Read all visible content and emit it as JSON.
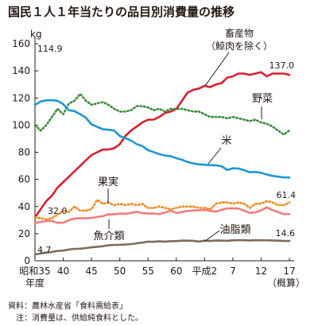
{
  "chart_data": {
    "type": "line",
    "title": "国民１人１年当たりの品目別消費量の推移",
    "ylabel": "kg",
    "ylim": [
      0,
      160
    ],
    "yticks": [
      "0",
      "20",
      "40",
      "60",
      "80",
      "100",
      "120",
      "140",
      "160"
    ],
    "xlim": [
      1960,
      2005
    ],
    "xticks": [
      {
        "x": 1960,
        "label": "昭和35"
      },
      {
        "x": 1965,
        "label": "40"
      },
      {
        "x": 1970,
        "label": "45"
      },
      {
        "x": 1975,
        "label": "50"
      },
      {
        "x": 1980,
        "label": "55"
      },
      {
        "x": 1985,
        "label": "60"
      },
      {
        "x": 1990,
        "label": "平成2"
      },
      {
        "x": 1995,
        "label": "7"
      },
      {
        "x": 2000,
        "label": "12"
      },
      {
        "x": 2005,
        "label": "17"
      }
    ],
    "xlabel_under_first": "年度",
    "xlabel_under_last": "（概算）",
    "grid": false,
    "series": [
      {
        "name": "畜産物（鯨肉を除く）",
        "color": "#d7202f",
        "style": "solid",
        "x": [
          1960,
          1961,
          1962,
          1963,
          1964,
          1965,
          1966,
          1967,
          1968,
          1969,
          1970,
          1971,
          1972,
          1973,
          1974,
          1975,
          1976,
          1977,
          1978,
          1979,
          1980,
          1981,
          1982,
          1983,
          1984,
          1985,
          1986,
          1987,
          1988,
          1989,
          1990,
          1991,
          1992,
          1993,
          1994,
          1995,
          1996,
          1997,
          1998,
          1999,
          2000,
          2001,
          2002,
          2003,
          2004,
          2005
        ],
        "y": [
          32,
          38,
          44,
          48,
          54,
          58,
          62,
          66,
          70,
          74,
          78,
          80,
          82,
          82,
          83,
          86,
          92,
          96,
          99,
          102,
          104,
          104,
          106,
          109,
          110,
          112,
          118,
          124,
          126,
          127,
          129,
          128,
          130,
          131,
          135,
          136,
          138,
          138,
          137,
          138,
          139,
          136,
          138,
          138,
          138,
          137
        ],
        "start_label": "",
        "end_label": "137.0"
      },
      {
        "name": "野菜",
        "color": "#3d8b3d",
        "style": "dotted",
        "x": [
          1960,
          1961,
          1962,
          1963,
          1964,
          1965,
          1966,
          1967,
          1968,
          1969,
          1970,
          1971,
          1972,
          1973,
          1974,
          1975,
          1976,
          1977,
          1978,
          1979,
          1980,
          1981,
          1982,
          1983,
          1984,
          1985,
          1986,
          1987,
          1988,
          1989,
          1990,
          1991,
          1992,
          1993,
          1994,
          1995,
          1996,
          1997,
          1998,
          1999,
          2000,
          2001,
          2002,
          2003,
          2004,
          2005
        ],
        "y": [
          100,
          96,
          100,
          106,
          112,
          108,
          116,
          118,
          123,
          118,
          115,
          116,
          117,
          115,
          112,
          110,
          110,
          111,
          114,
          114,
          113,
          111,
          112,
          110,
          112,
          112,
          112,
          111,
          110,
          110,
          108,
          106,
          106,
          106,
          105,
          106,
          105,
          104,
          103,
          104,
          102,
          101,
          99,
          96,
          93,
          96
        ],
        "start_label": "",
        "end_label": ""
      },
      {
        "name": "米",
        "color": "#1e96d4",
        "style": "solid",
        "x": [
          1960,
          1961,
          1962,
          1963,
          1964,
          1965,
          1966,
          1967,
          1968,
          1969,
          1970,
          1971,
          1972,
          1973,
          1974,
          1975,
          1976,
          1977,
          1978,
          1979,
          1980,
          1981,
          1982,
          1983,
          1984,
          1985,
          1986,
          1987,
          1988,
          1989,
          1990,
          1991,
          1992,
          1993,
          1994,
          1995,
          1996,
          1997,
          1998,
          1999,
          2000,
          2001,
          2002,
          2003,
          2004,
          2005
        ],
        "y": [
          114.9,
          117.4,
          118.3,
          118.4,
          117.9,
          115.4,
          111.0,
          110.3,
          108.1,
          105.5,
          100.5,
          98.8,
          97.0,
          96.6,
          96.0,
          92.0,
          90.4,
          88.6,
          86.0,
          84.6,
          81.5,
          80.1,
          78.6,
          77.6,
          77.1,
          75.6,
          74.5,
          72.8,
          71.8,
          71.1,
          70.8,
          70.5,
          70.4,
          69.7,
          67.0,
          68.2,
          68.0,
          66.8,
          65.3,
          65.5,
          64.9,
          63.6,
          62.6,
          62.0,
          61.5,
          61.4
        ],
        "start_label": "114.9",
        "end_label": "61.4"
      },
      {
        "name": "果実",
        "color": "#ee8a1c",
        "style": "dotted",
        "x": [
          1960,
          1961,
          1962,
          1963,
          1964,
          1965,
          1966,
          1967,
          1968,
          1969,
          1970,
          1971,
          1972,
          1973,
          1974,
          1975,
          1976,
          1977,
          1978,
          1979,
          1980,
          1981,
          1982,
          1983,
          1984,
          1985,
          1986,
          1987,
          1988,
          1989,
          1990,
          1991,
          1992,
          1993,
          1994,
          1995,
          1996,
          1997,
          1998,
          1999,
          2000,
          2001,
          2002,
          2003,
          2004,
          2005
        ],
        "y": [
          32.0,
          31.5,
          30.5,
          31.5,
          34,
          37,
          36,
          40,
          37,
          37,
          38,
          45,
          42,
          43,
          41,
          42,
          41,
          42,
          41,
          42,
          39,
          39,
          40,
          39,
          38,
          39,
          40,
          40,
          40,
          39,
          39,
          38,
          42,
          43,
          43,
          42,
          43,
          42,
          39,
          42,
          42,
          44,
          43,
          41,
          41,
          43
        ],
        "start_label": "32.0",
        "end_label": ""
      },
      {
        "name": "魚介類",
        "color": "#ef7d7d",
        "style": "solid",
        "x": [
          1960,
          1961,
          1962,
          1963,
          1964,
          1965,
          1966,
          1967,
          1968,
          1969,
          1970,
          1971,
          1972,
          1973,
          1974,
          1975,
          1976,
          1977,
          1978,
          1979,
          1980,
          1981,
          1982,
          1983,
          1984,
          1985,
          1986,
          1987,
          1988,
          1989,
          1990,
          1991,
          1992,
          1993,
          1994,
          1995,
          1996,
          1997,
          1998,
          1999,
          2000,
          2001,
          2002,
          2003,
          2004,
          2005
        ],
        "y": [
          27.8,
          28.7,
          29.3,
          29.4,
          28.0,
          28.1,
          29.9,
          31.2,
          31.4,
          31.3,
          31.6,
          32.3,
          32.9,
          34.3,
          34.2,
          34.9,
          34.7,
          35.3,
          36.2,
          35.1,
          34.8,
          34.9,
          34.4,
          35.6,
          36.9,
          35.3,
          36.0,
          36.7,
          37.1,
          37.3,
          37.5,
          36.8,
          36.2,
          37.6,
          38.6,
          38.6,
          38.5,
          37.0,
          35.3,
          35.7,
          37.2,
          39.4,
          37.4,
          35.9,
          34.3,
          34.6
        ],
        "start_label": "",
        "end_label": ""
      },
      {
        "name": "油脂類",
        "color": "#7f6a5c",
        "style": "solid",
        "x": [
          1960,
          1961,
          1962,
          1963,
          1964,
          1965,
          1966,
          1967,
          1968,
          1969,
          1970,
          1971,
          1972,
          1973,
          1974,
          1975,
          1976,
          1977,
          1978,
          1979,
          1980,
          1981,
          1982,
          1983,
          1984,
          1985,
          1986,
          1987,
          1988,
          1989,
          1990,
          1991,
          1992,
          1993,
          1994,
          1995,
          1996,
          1997,
          1998,
          1999,
          2000,
          2001,
          2002,
          2003,
          2004,
          2005
        ],
        "y": [
          4.7,
          5.4,
          6.0,
          6.5,
          7.3,
          7.5,
          8.3,
          8.8,
          8.9,
          9.4,
          9.9,
          10.3,
          10.7,
          11.5,
          11.7,
          11.8,
          12.0,
          12.3,
          12.9,
          13.4,
          14.1,
          14.0,
          14.4,
          14.1,
          14.5,
          14.5,
          14.9,
          14.8,
          14.7,
          14.2,
          14.9,
          14.6,
          15.0,
          14.9,
          14.7,
          15.1,
          15.2,
          15.2,
          15.0,
          15.2,
          15.1,
          15.1,
          15.0,
          14.8,
          14.6,
          14.6
        ],
        "start_label": "4.7",
        "end_label": "14.6"
      }
    ],
    "series_labels": [
      {
        "text": "畜産物",
        "color": "#231815"
      },
      {
        "text": "（鯨肉を除く）",
        "color": "#231815"
      },
      {
        "text": "野菜",
        "color": "#231815"
      },
      {
        "text": "米",
        "color": "#231815"
      },
      {
        "text": "果実",
        "color": "#231815"
      },
      {
        "text": "魚介類",
        "color": "#231815"
      },
      {
        "text": "油脂類",
        "color": "#231815"
      }
    ]
  },
  "notes": {
    "source": "資料：農林水産省「食料需給表」",
    "usage": "　注：消費量は、供給純食料とした。"
  }
}
